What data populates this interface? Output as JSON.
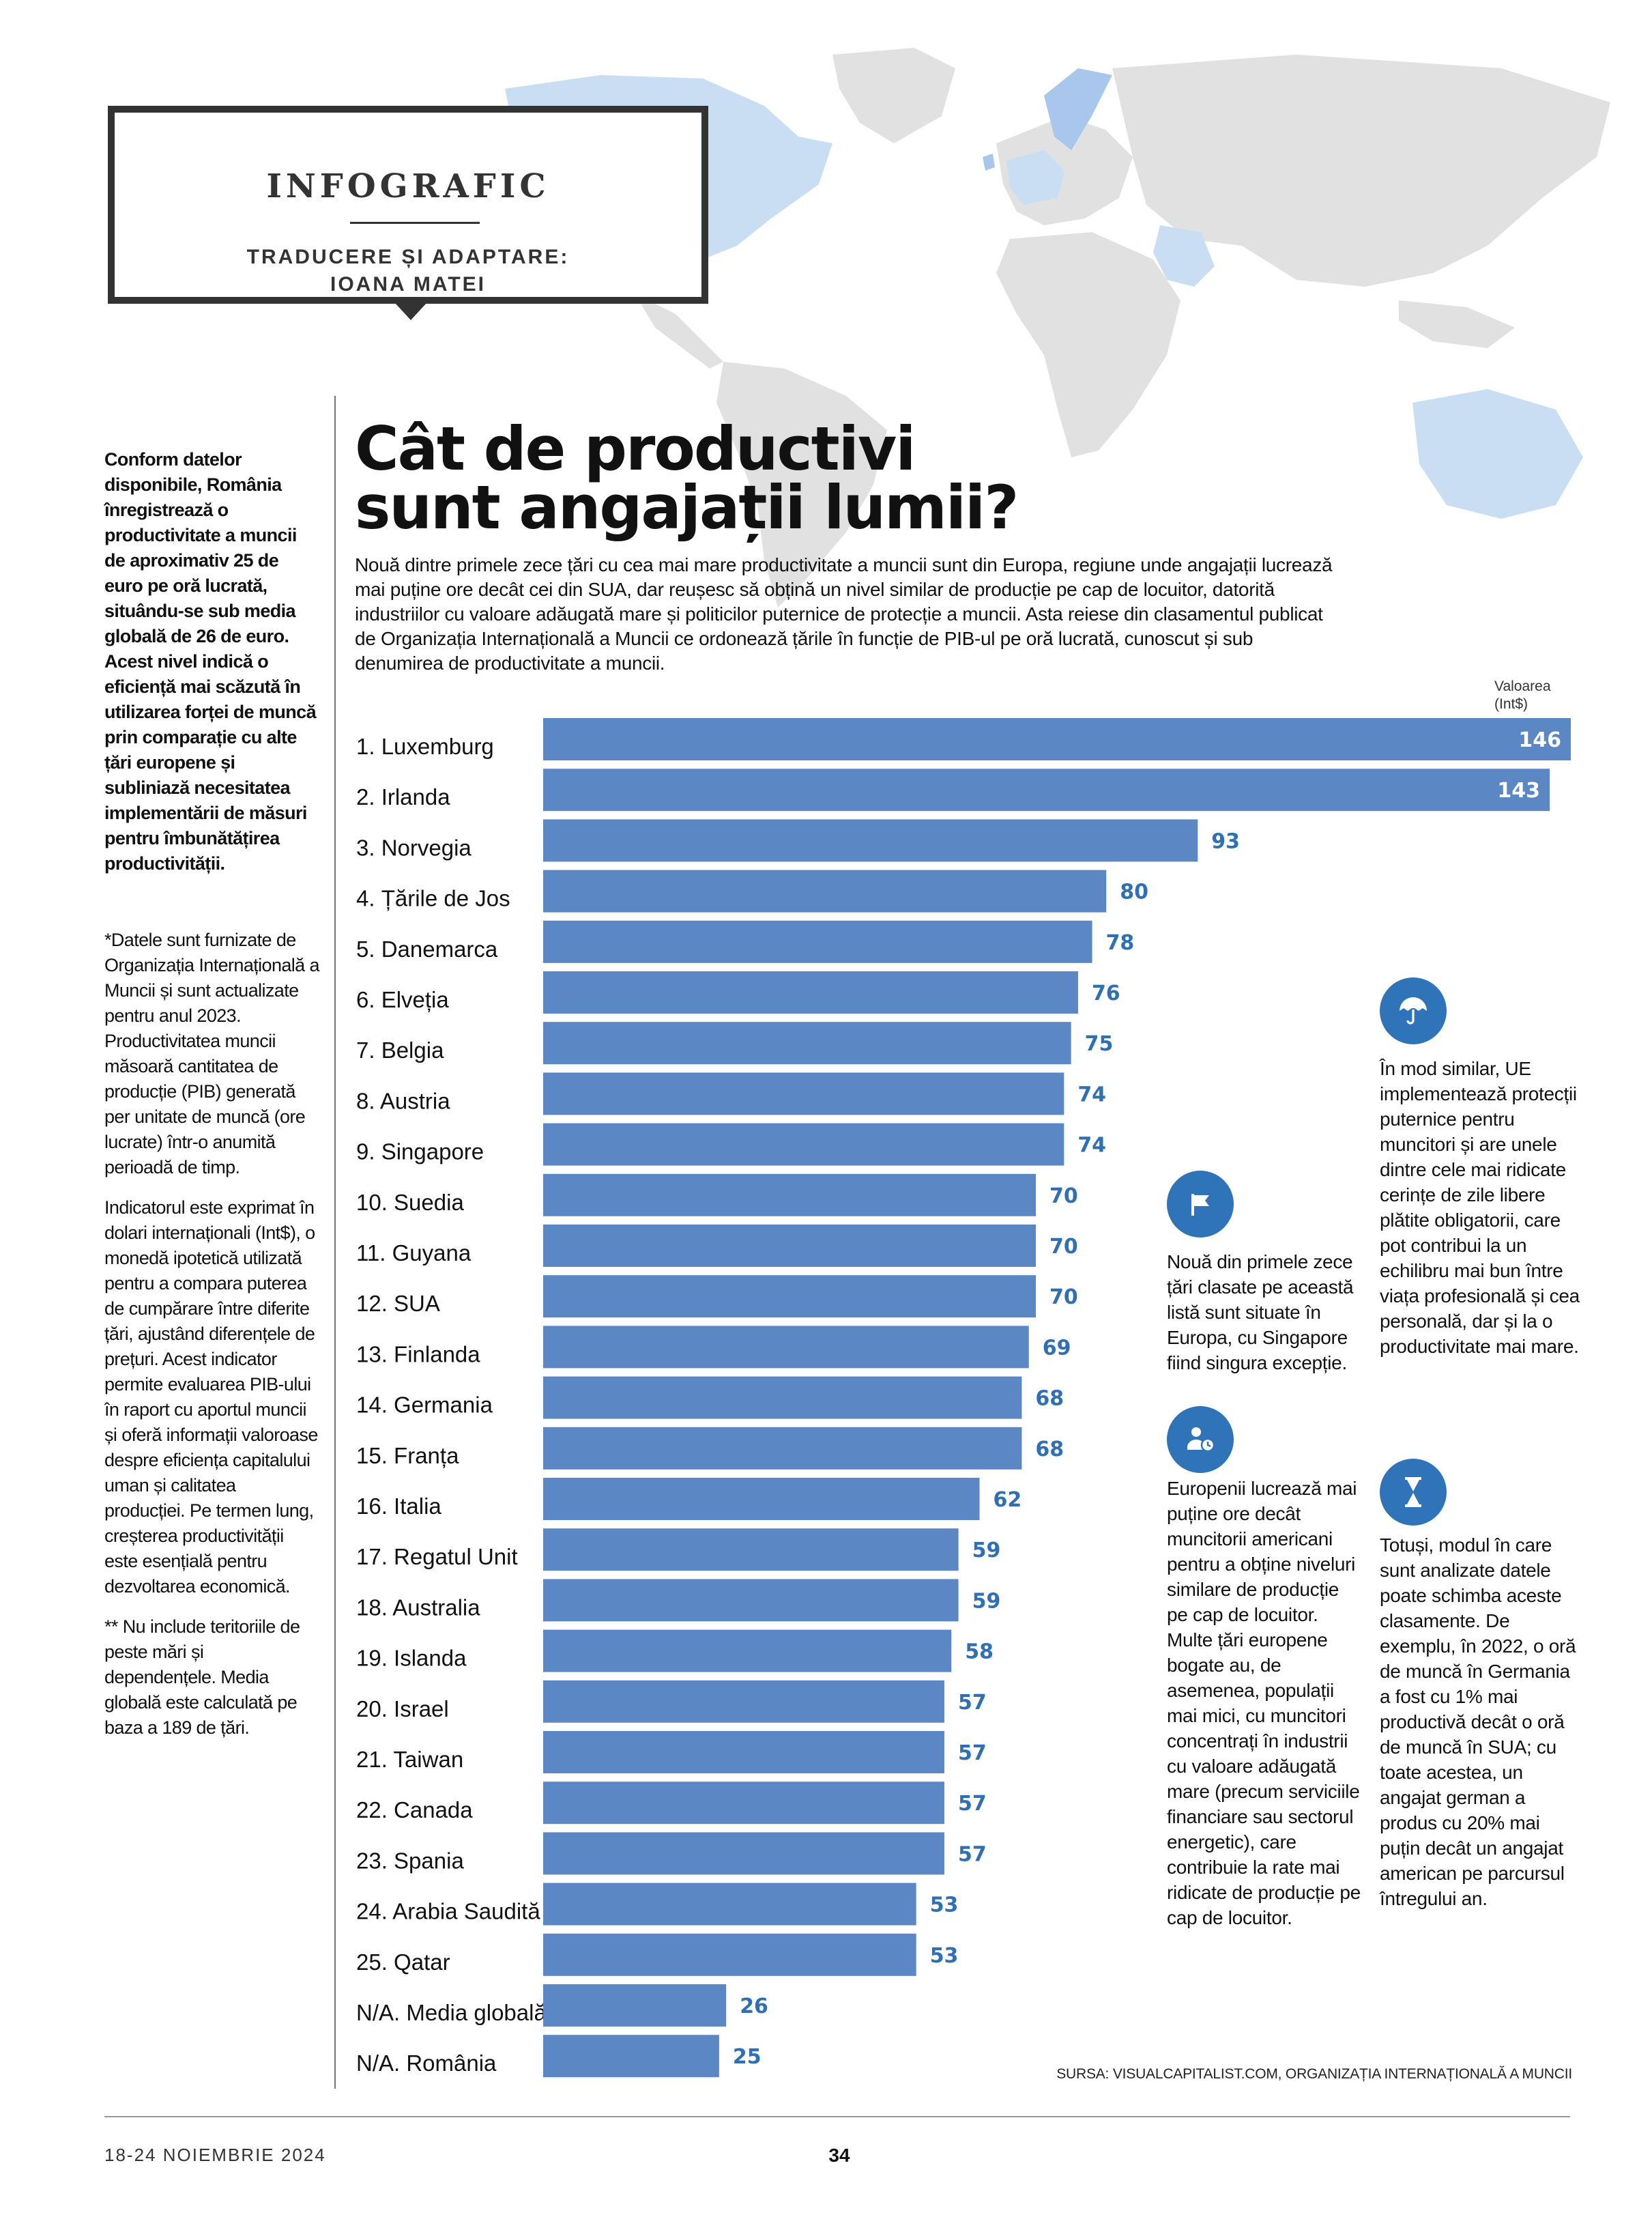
{
  "header": {
    "box_title": "INFOGRAFIC",
    "box_subtitle_line1": "TRADUCERE ȘI ADAPTARE:",
    "box_subtitle_line2": "IOANA MATEI"
  },
  "headline": {
    "line1": "Cât de productivi",
    "line2": "sunt angajații lumii?"
  },
  "intro": "Nouă dintre primele zece țări cu cea mai mare productivitate a muncii sunt din Europa, regiune unde angajații lucrează mai puține ore decât cei din SUA, dar reușesc să obțină un nivel similar de producție pe cap de locuitor, datorită industriilor cu valoare adăugată mare și politicilor puternice de protecție a muncii. Asta reiese din clasamentul publicat de Organizația Internațională a Muncii ce ordonează țările în funcție de PIB-ul pe oră lucrată, cunoscut și sub denumirea de productivitate a muncii.",
  "left_column": {
    "lead": "Conform datelor disponibile, România înregistrează o productivitate a muncii de aproximativ 25 de euro pe oră lucrată, situându-se sub media globală de 26 de euro. Acest nivel indică o eficiență mai scăzută în utilizarea forței de muncă prin comparație cu alte țări europene și subliniază necesitatea implementării de măsuri pentru îmbunătățirea productivității.",
    "note1": "*Datele sunt furnizate de Organizația Internațională a Muncii și sunt actualizate pentru anul 2023. Productivitatea muncii măsoară cantitatea de producție (PIB) generată per unitate de muncă (ore lucrate) într-o anumită perioadă de timp.",
    "note2": "Indicatorul este exprimat în dolari internaționali (Int$), o monedă ipotetică utilizată pentru a compara puterea de cumpărare între diferite țări, ajustând diferențele de prețuri. Acest indicator permite evaluarea PIB-ului în raport cu aportul muncii și oferă informații valoroase despre eficiența capitalului uman și calitatea producției. Pe termen lung, creșterea productivității este esențială pentru dezvoltarea economică.",
    "note3": "** Nu include teritoriile de peste mări și dependențele. Media globală este calculată pe baza a 189 de țări."
  },
  "value_header": "Valoarea (Int$)",
  "chart_data": {
    "type": "bar",
    "orientation": "horizontal",
    "categories": [
      "1. Luxemburg",
      "2. Irlanda",
      "3. Norvegia",
      "4. Țările de Jos",
      "5. Danemarca",
      "6. Elveția",
      "7. Belgia",
      "8. Austria",
      "9. Singapore",
      "10. Suedia",
      "11. Guyana",
      "12. SUA",
      "13. Finlanda",
      "14. Germania",
      "15. Franța",
      "16. Italia",
      "17. Regatul Unit",
      "18. Australia",
      "19. Islanda",
      "20. Israel",
      "21. Taiwan",
      "22. Canada",
      "23. Spania",
      "24. Arabia Saudită",
      "25. Qatar",
      "N/A. Media globală",
      "N/A. România"
    ],
    "values": [
      146,
      143,
      93,
      80,
      78,
      76,
      75,
      74,
      74,
      70,
      70,
      70,
      69,
      68,
      68,
      62,
      59,
      59,
      58,
      57,
      57,
      57,
      57,
      53,
      53,
      26,
      25
    ],
    "value_labels_inside_bar_for_top": 2,
    "xlim": [
      0,
      146
    ],
    "bar_color": "#5b87c5",
    "value_color": "#2f6fb3",
    "inside_value_color": "#ffffff",
    "grid": false
  },
  "callouts": [
    {
      "icon": "umbrella-icon",
      "text": "În mod similar, UE implementează protecții puternice pentru muncitori și are unele dintre cele mai ridicate cerințe de zile libere plătite obligatorii, care pot contribui la un echilibru mai bun între viața profesională și cea personală, dar și la o productivitate mai mare."
    },
    {
      "icon": "flag-icon",
      "text": "Nouă din primele zece țări clasate pe această listă sunt situate în Europa, cu Singapore fiind singura excepție."
    },
    {
      "icon": "worker-clock-icon",
      "text": "Europenii lucrează mai puține ore decât muncitorii americani pentru a obține niveluri similare de producție pe cap de locuitor. Multe țări europene bogate au, de asemenea, populații mai mici, cu muncitori concentrați în industrii cu valoare adăugată mare (precum serviciile financiare sau sectorul energetic), care contribuie la rate mai ridicate de producție pe cap de locuitor."
    },
    {
      "icon": "hourglass-icon",
      "text": "Totuși, modul în care sunt analizate datele poate schimba aceste clasamente. De exemplu, în 2022, o oră de muncă în Germania a fost cu 1% mai productivă decât o oră de muncă în SUA; cu toate acestea, un angajat german a produs cu 20% mai puțin decât un angajat american pe parcursul întregului an."
    }
  ],
  "source": "SURSA: VISUALCAPITALIST.COM, ORGANIZAȚIA INTERNAȚIONALĂ A MUNCII",
  "footer": {
    "date": "18-24 NOIEMBRIE 2024",
    "page": "34"
  }
}
